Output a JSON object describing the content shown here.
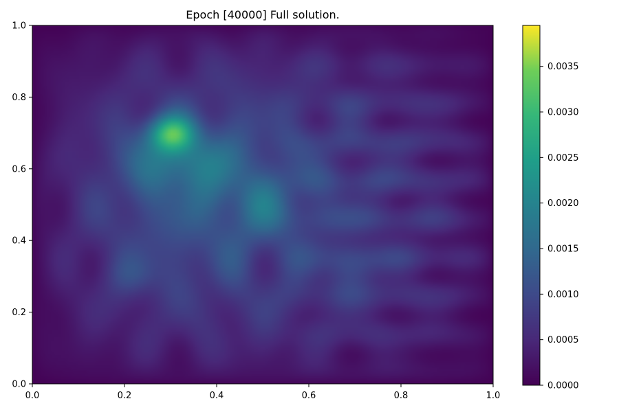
{
  "chart_data": {
    "type": "heatmap",
    "title": "Epoch [40000] Full solution.",
    "xlabel": "",
    "ylabel": "",
    "xlim": [
      0.0,
      1.0
    ],
    "ylim": [
      0.0,
      1.0
    ],
    "x_ticks": [
      0.0,
      0.2,
      0.4,
      0.6,
      0.8,
      1.0
    ],
    "x_tick_labels": [
      "0.0",
      "0.2",
      "0.4",
      "0.6",
      "0.8",
      "1.0"
    ],
    "y_ticks": [
      0.0,
      0.2,
      0.4,
      0.6,
      0.8,
      1.0
    ],
    "y_tick_labels": [
      "0.0",
      "0.2",
      "0.4",
      "0.6",
      "0.8",
      "1.0"
    ],
    "colormap": "viridis",
    "colorbar": {
      "min": 0.0,
      "max": 0.00395,
      "ticks": [
        0.0,
        0.0005,
        0.001,
        0.0015,
        0.002,
        0.0025,
        0.003,
        0.0035
      ],
      "tick_labels": [
        "0.0000",
        "0.0005",
        "0.0010",
        "0.0015",
        "0.0020",
        "0.0025",
        "0.0030",
        "0.0035"
      ]
    },
    "grid": false,
    "peak": {
      "x": 0.3,
      "y": 0.7,
      "value": 0.00395
    },
    "features": [
      {
        "x": 0.3,
        "y": 0.7,
        "amp": 0.0024,
        "sigma": 0.035
      },
      {
        "x": 0.27,
        "y": 0.63,
        "amp": 0.0006,
        "sigma": 0.06
      },
      {
        "x": 0.36,
        "y": 0.62,
        "amp": 0.0006,
        "sigma": 0.06
      },
      {
        "x": 0.5,
        "y": 0.5,
        "amp": 0.0005,
        "sigma": 0.06
      },
      {
        "x": 0.22,
        "y": 0.3,
        "amp": 0.0005,
        "sigma": 0.04
      },
      {
        "x": 0.7,
        "y": 0.31,
        "amp": 0.0005,
        "sigma": 0.04
      }
    ]
  }
}
